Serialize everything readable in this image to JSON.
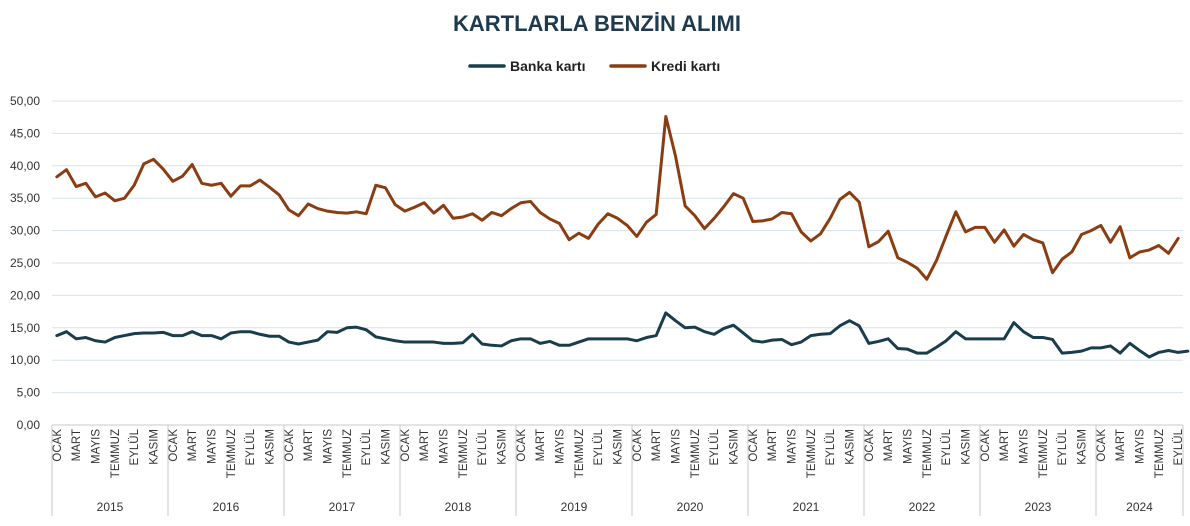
{
  "chart_data": {
    "type": "line",
    "title": "KARTLARLA BENZİN ALIMI",
    "legend_position": "top-center",
    "grid": true,
    "ylim": [
      0,
      50
    ],
    "y_ticks": [
      "0,00",
      "5,00",
      "10,00",
      "15,00",
      "20,00",
      "25,00",
      "30,00",
      "35,00",
      "40,00",
      "45,00",
      "50,00"
    ],
    "month_tick_labels": [
      "OCAK",
      "MART",
      "MAYIS",
      "TEMMUZ",
      "EYLÜL",
      "KASIM"
    ],
    "years": [
      "2015",
      "2016",
      "2017",
      "2018",
      "2019",
      "2020",
      "2021",
      "2022",
      "2023",
      "2024"
    ],
    "months_last_year": 9,
    "series": [
      {
        "name": "Banka kartı",
        "color": "#1a3d4d",
        "values": [
          13.8,
          14.4,
          13.3,
          13.5,
          13.0,
          12.8,
          13.5,
          13.8,
          14.1,
          14.2,
          14.2,
          14.3,
          13.8,
          13.8,
          14.4,
          13.8,
          13.8,
          13.3,
          14.2,
          14.4,
          14.4,
          14.0,
          13.7,
          13.7,
          12.8,
          12.5,
          12.8,
          13.1,
          14.4,
          14.3,
          15.0,
          15.1,
          14.7,
          13.6,
          13.3,
          13.0,
          12.8,
          12.8,
          12.8,
          12.8,
          12.6,
          12.6,
          12.7,
          14.0,
          12.5,
          12.3,
          12.2,
          13.0,
          13.3,
          13.3,
          12.6,
          12.9,
          12.3,
          12.3,
          12.8,
          13.3,
          13.3,
          13.3,
          13.3,
          13.3,
          13.0,
          13.5,
          13.8,
          17.3,
          16.1,
          15.0,
          15.1,
          14.4,
          14.0,
          14.9,
          15.4,
          14.2,
          13.0,
          12.8,
          13.1,
          13.2,
          12.4,
          12.8,
          13.8,
          14.0,
          14.1,
          15.3,
          16.1,
          15.3,
          12.6,
          12.9,
          13.3,
          11.8,
          11.7,
          11.1,
          11.1,
          12.0,
          13.0,
          14.4,
          13.3,
          13.3,
          13.3,
          13.3,
          13.3,
          15.8,
          14.4,
          13.5,
          13.5,
          13.2,
          11.1,
          11.2,
          11.4,
          11.9,
          11.9,
          12.2,
          11.1,
          12.6,
          11.5,
          10.5,
          11.2,
          11.5,
          11.2,
          11.4
        ]
      },
      {
        "name": "Kredi kartı",
        "color": "#8b3d12",
        "values": [
          38.3,
          39.4,
          36.8,
          37.3,
          35.2,
          35.8,
          34.6,
          35.0,
          37.0,
          40.3,
          41.0,
          39.5,
          37.6,
          38.4,
          40.2,
          37.3,
          37.0,
          37.3,
          35.3,
          36.9,
          36.9,
          37.8,
          36.7,
          35.5,
          33.2,
          32.3,
          34.1,
          33.4,
          33.0,
          32.8,
          32.7,
          32.9,
          32.6,
          37.0,
          36.6,
          34.0,
          33.0,
          33.6,
          34.3,
          32.7,
          33.9,
          31.9,
          32.1,
          32.6,
          31.6,
          32.8,
          32.3,
          33.4,
          34.3,
          34.5,
          32.8,
          31.8,
          31.1,
          28.6,
          29.6,
          28.8,
          31.0,
          32.6,
          31.9,
          30.8,
          29.1,
          31.3,
          32.5,
          47.6,
          41.5,
          33.8,
          32.3,
          30.3,
          31.9,
          33.7,
          35.7,
          35.0,
          31.4,
          31.5,
          31.8,
          32.8,
          32.6,
          29.8,
          28.4,
          29.5,
          31.9,
          34.8,
          35.9,
          34.4,
          27.5,
          28.3,
          29.9,
          25.8,
          25.1,
          24.2,
          22.5,
          25.4,
          29.2,
          32.9,
          29.8,
          30.5,
          30.5,
          28.2,
          30.1,
          27.6,
          29.4,
          28.6,
          28.1,
          23.5,
          25.6,
          26.7,
          29.4,
          30.0,
          30.8,
          28.2,
          30.6,
          25.8,
          26.7,
          27.0,
          27.7,
          26.5,
          28.8
        ]
      }
    ]
  }
}
